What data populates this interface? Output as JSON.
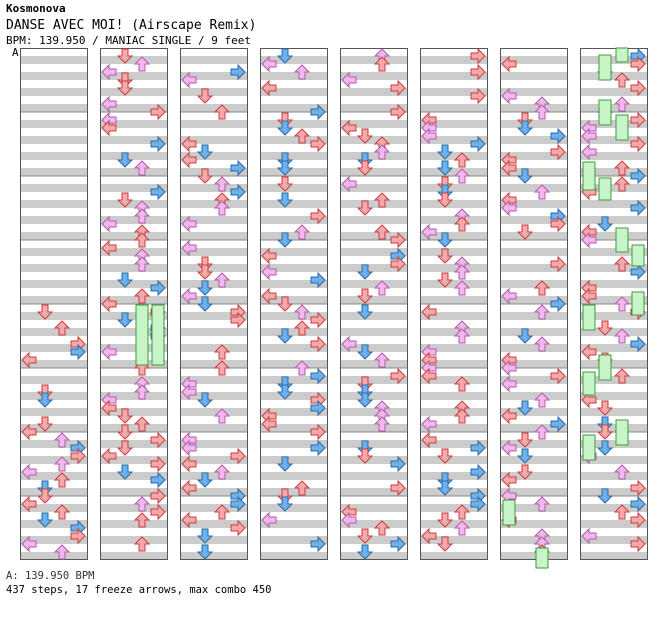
{
  "song": {
    "artist": "Kosmonova",
    "title": "DANSE AVEC MOI! (Airscape Remix)",
    "meta": "BPM: 139.950 / MANIAC SINGLE / 9 feet",
    "marker": "A"
  },
  "footer": {
    "bpm": "A: 139.950 BPM",
    "stats": "437 steps, 17 freeze arrows, max combo 450"
  },
  "chart_data": {
    "type": "step-chart",
    "difficulty": "MANIAC SINGLE",
    "feet": 9,
    "steps": 437,
    "freeze_arrows": 17,
    "max_combo": 450,
    "measures_per_column": 8,
    "columns": 8,
    "colors": {
      "arrow_red": "#f4aaaa",
      "arrow_red_stroke": "#c83c3c",
      "arrow_blue": "#6fb0ea",
      "arrow_blue_stroke": "#2a6aa8",
      "arrow_pink": "#f2b8ee",
      "arrow_pink_stroke": "#b05aa8",
      "freeze": "#c8f5c8",
      "freeze_stroke": "#3c9a3c",
      "stripe": "#cccccc"
    },
    "arrow_rows": [
      [],
      [
        [
          "L",
          1.0,
          "p"
        ],
        [
          "D",
          0.5,
          "r"
        ],
        [
          "U",
          0.5,
          "r"
        ],
        [
          "D",
          1.5,
          "r"
        ],
        [
          "L",
          2.5,
          "p"
        ],
        [
          "R",
          3.0,
          "b"
        ],
        [
          "L",
          4.0,
          "r"
        ],
        [
          "U",
          4.5,
          "p"
        ],
        [
          "R",
          5.0,
          "b"
        ],
        [
          "L",
          5.5,
          "r"
        ],
        [
          "D",
          6.0,
          "b"
        ],
        [
          "U",
          6.5,
          "p"
        ],
        [
          "L",
          7.0,
          "r"
        ],
        [
          "U",
          7.5,
          "p"
        ],
        [
          "R",
          8.0,
          "b"
        ],
        [
          "U",
          8.5,
          "r"
        ],
        [
          "L",
          9.0,
          "r"
        ],
        [
          "R",
          9.5,
          "b"
        ],
        [
          "D",
          10.0,
          "p"
        ],
        [
          "L",
          10.5,
          "r"
        ],
        [
          "R",
          11.0,
          "b"
        ],
        [
          "U",
          11.5,
          "r"
        ],
        [
          "L",
          12.0,
          "r"
        ],
        [
          "U",
          12.5,
          "p"
        ],
        [
          "L",
          13.0,
          "r"
        ],
        [
          "U",
          13.5,
          "r"
        ],
        [
          "L",
          14.0,
          "p"
        ],
        [
          "R",
          14.5,
          "b"
        ],
        [
          "U",
          15.0,
          "p"
        ],
        [
          "R",
          15.5,
          "b"
        ],
        [
          "L",
          16.0,
          "r"
        ],
        [
          "D",
          16.5,
          "b"
        ],
        [
          "R",
          17.0,
          "b"
        ],
        [
          "U",
          17.5,
          "b"
        ],
        [
          "L",
          18.0,
          "p"
        ],
        [
          "D",
          18.5,
          "r"
        ],
        [
          "L",
          19.0,
          "r"
        ],
        [
          "R",
          19.5,
          "r"
        ],
        [
          "D",
          20.0,
          "r"
        ],
        [
          "U",
          20.5,
          "b"
        ],
        [
          "L",
          21.0,
          "p"
        ],
        [
          "R",
          21.5,
          "b"
        ],
        [
          "D",
          22.0,
          "p"
        ],
        [
          "L",
          22.5,
          "r"
        ],
        [
          "U",
          23.0,
          "r"
        ],
        [
          "R",
          23.5,
          "r"
        ],
        [
          "L",
          24.0,
          "r"
        ],
        [
          "D",
          24.5,
          "b"
        ],
        [
          "U",
          25.0,
          "r"
        ],
        [
          "R",
          25.5,
          "b"
        ],
        [
          "L",
          26.0,
          "p"
        ],
        [
          "D",
          26.5,
          "r"
        ],
        [
          "U",
          27.0,
          "r"
        ],
        [
          "R",
          27.5,
          "b"
        ],
        [
          "D",
          28.0,
          "r"
        ],
        [
          "L",
          28.5,
          "p"
        ],
        [
          "U",
          29.0,
          "r"
        ],
        [
          "R",
          29.5,
          "b"
        ],
        [
          "L",
          30.0,
          "p"
        ],
        [
          "D",
          30.5,
          "b"
        ],
        [
          "U",
          31.0,
          "r"
        ],
        [
          "R",
          31.5,
          "r"
        ]
      ]
    ]
  }
}
